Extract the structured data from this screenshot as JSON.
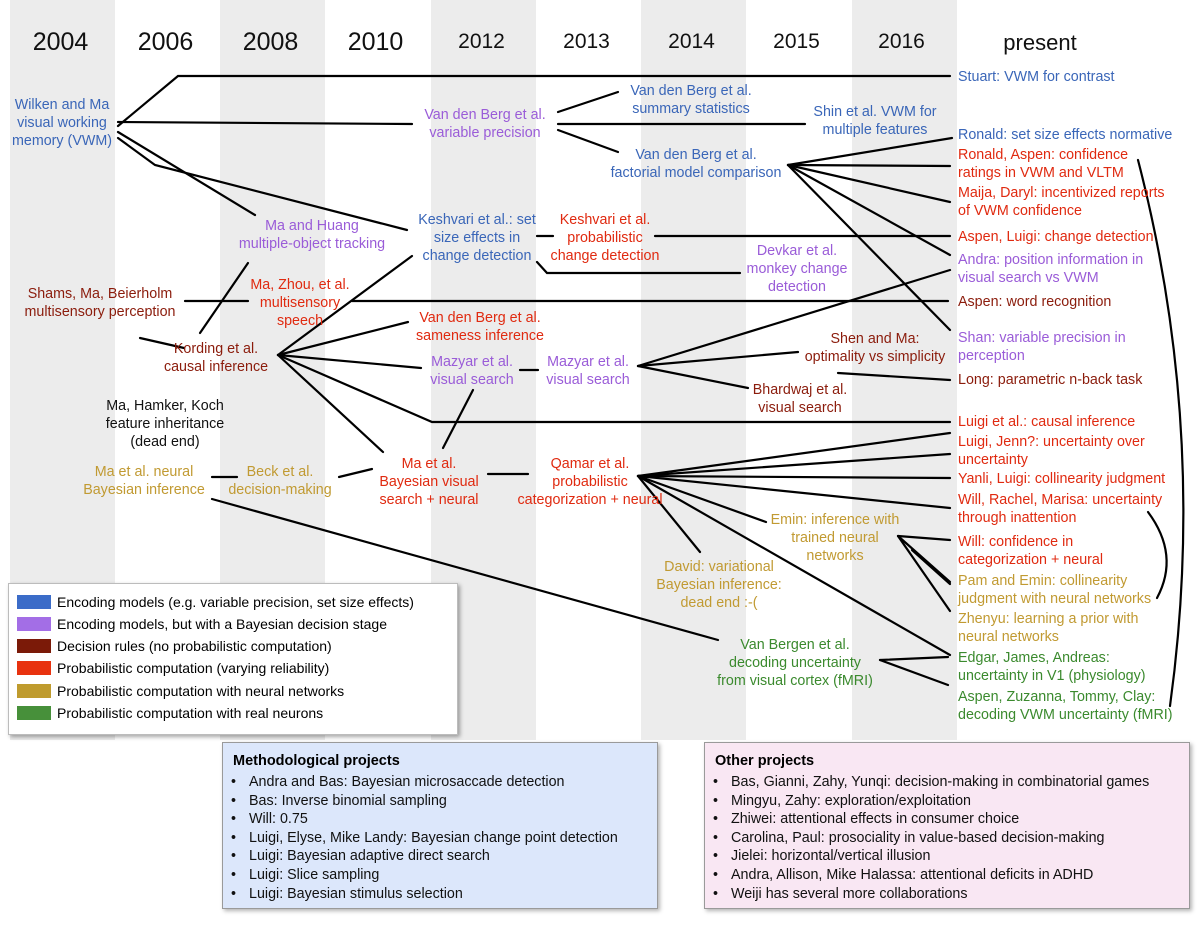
{
  "colors": {
    "blue": "#3a66b8",
    "purple": "#9a5cd8",
    "darkred": "#8b1c0c",
    "red": "#e02a10",
    "gold": "#c19a32",
    "green": "#3b8a2e",
    "black": "#111111"
  },
  "years": [
    "2004",
    "2006",
    "2008",
    "2010",
    "2012",
    "2013",
    "2014",
    "2015",
    "2016",
    "present"
  ],
  "nodes": {
    "wilken": {
      "text": "Wilken and Ma\nvisual working\nmemory (VWM)",
      "color": "blue"
    },
    "vdb_var": {
      "text": "Van den Berg et al.\nvariable precision",
      "color": "purple"
    },
    "vdb_sum": {
      "text": "Van den Berg et al.\nsummary statistics",
      "color": "blue"
    },
    "shin": {
      "text": "Shin et al. VWM for\nmultiple features",
      "color": "blue"
    },
    "vdb_fac": {
      "text": "Van den Berg et al.\nfactorial model comparison",
      "color": "blue"
    },
    "ma_huang": {
      "text": "Ma and Huang\nmultiple-object tracking",
      "color": "purple"
    },
    "keshvari_ss": {
      "text": "Keshvari et al.: set\nsize effects in\nchange detection",
      "color": "blue"
    },
    "keshvari_prob": {
      "text": "Keshvari et al.\nprobabilistic\nchange detection",
      "color": "red"
    },
    "devkar": {
      "text": "Devkar et al.\nmonkey change\ndetection",
      "color": "purple"
    },
    "shams": {
      "text": "Shams, Ma, Beierholm\nmultisensory perception",
      "color": "darkred"
    },
    "ma_zhou": {
      "text": "Ma, Zhou, et al.\nmultisensory\nspeech",
      "color": "red"
    },
    "vdb_same": {
      "text": "Van den Berg et al.\nsameness inference",
      "color": "red"
    },
    "kording": {
      "text": "Kording et al.\ncausal inference",
      "color": "darkred"
    },
    "mazyar1": {
      "text": "Mazyar et al.\nvisual search",
      "color": "purple"
    },
    "mazyar2": {
      "text": "Mazyar et al.\nvisual search",
      "color": "purple"
    },
    "shen_ma": {
      "text": "Shen and Ma:\noptimality vs simplicity",
      "color": "darkred"
    },
    "bhardwaj": {
      "text": "Bhardwaj et al.\nvisual search",
      "color": "darkred"
    },
    "hamker": {
      "text": "Ma, Hamker, Koch\nfeature inheritance\n(dead end)",
      "color": "black"
    },
    "ma_neural": {
      "text": "Ma et al. neural\nBayesian inference",
      "color": "gold"
    },
    "beck": {
      "text": "Beck et al.\ndecision-making",
      "color": "gold"
    },
    "ma_vs": {
      "text": "Ma et al.\nBayesian visual\nsearch + neural",
      "color": "red"
    },
    "qamar": {
      "text": "Qamar et al.\nprobabilistic\ncategorization + neural",
      "color": "red"
    },
    "emin": {
      "text": "Emin: inference with\ntrained neural\nnetworks",
      "color": "gold"
    },
    "david": {
      "text": "David: variational\nBayesian inference:\ndead end :-(",
      "color": "gold"
    },
    "vanbergen": {
      "text": "Van Bergen et al.\ndecoding uncertainty\nfrom visual cortex (fMRI)",
      "color": "green"
    },
    "p_stuart": {
      "text": "Stuart: VWM for contrast",
      "color": "blue"
    },
    "p_ronald1": {
      "text": "Ronald: set size effects normative",
      "color": "blue"
    },
    "p_ronald2": {
      "text": "Ronald, Aspen: confidence\nratings in VWM and VLTM",
      "color": "red"
    },
    "p_maija": {
      "text": "Maija, Daryl: incentivized reports\nof VWM confidence",
      "color": "red"
    },
    "p_aspen_cd": {
      "text": "Aspen, Luigi: change detection",
      "color": "red"
    },
    "p_andra": {
      "text": "Andra: position information in\nvisual search vs VWM",
      "color": "purple"
    },
    "p_aspen_wr": {
      "text": "Aspen: word recognition",
      "color": "darkred"
    },
    "p_shan": {
      "text": "Shan: variable precision in\nperception",
      "color": "purple"
    },
    "p_long": {
      "text": "Long: parametric n-back task",
      "color": "darkred"
    },
    "p_luigi_ci": {
      "text": "Luigi et al.: causal inference",
      "color": "red"
    },
    "p_luigi_jenn": {
      "text": "Luigi, Jenn?: uncertainty over\nuncertainty",
      "color": "red"
    },
    "p_yanli": {
      "text": "Yanli, Luigi: collinearity judgment",
      "color": "red"
    },
    "p_will": {
      "text": "Will, Rachel, Marisa: uncertainty\nthrough inattention",
      "color": "red"
    },
    "p_will_conf": {
      "text": "Will: confidence in\ncategorization + neural",
      "color": "red"
    },
    "p_pam": {
      "text": "Pam and Emin: collinearity\njudgment with neural networks",
      "color": "gold"
    },
    "p_zhenyu": {
      "text": "Zhenyu: learning a prior with\nneural networks",
      "color": "gold"
    },
    "p_edgar": {
      "text": "Edgar, James, Andreas:\nuncertainty in V1 (physiology)",
      "color": "green"
    },
    "p_aspen_fmri": {
      "text": "Aspen, Zuzanna, Tommy, Clay:\ndecoding VWM uncertainty (fMRI)",
      "color": "green"
    }
  },
  "legend": [
    {
      "label": "Encoding models (e.g. variable precision, set size effects)",
      "color": "#3b6cc8"
    },
    {
      "label": "Encoding models, but with a Bayesian decision stage",
      "color": "#a36ee6"
    },
    {
      "label": "Decision rules (no probabilistic computation)",
      "color": "#7b1a08"
    },
    {
      "label": "Probabilistic computation (varying reliability)",
      "color": "#e8320f"
    },
    {
      "label": "Probabilistic computation with neural networks",
      "color": "#bf9b2e"
    },
    {
      "label": "Probabilistic computation with real neurons",
      "color": "#47903a"
    }
  ],
  "methodological": {
    "title": "Methodological projects",
    "items": [
      "Andra and Bas: Bayesian microsaccade detection",
      "Bas: Inverse binomial sampling",
      "Will: 0.75",
      "Luigi, Elyse, Mike Landy: Bayesian change point detection",
      "Luigi: Bayesian adaptive direct search",
      "Luigi: Slice sampling",
      "Luigi: Bayesian stimulus selection"
    ]
  },
  "other": {
    "title": "Other projects",
    "items": [
      "Bas, Gianni, Zahy, Yunqi: decision-making in combinatorial games",
      "Mingyu, Zahy: exploration/exploitation",
      "Zhiwei: attentional effects in consumer choice",
      "Carolina, Paul: prosociality in value-based decision-making",
      "Jielei: horizontal/vertical illusion",
      "Andra, Allison, Mike Halassa: attentional deficits in ADHD",
      "Weiji has several more collaborations"
    ]
  }
}
